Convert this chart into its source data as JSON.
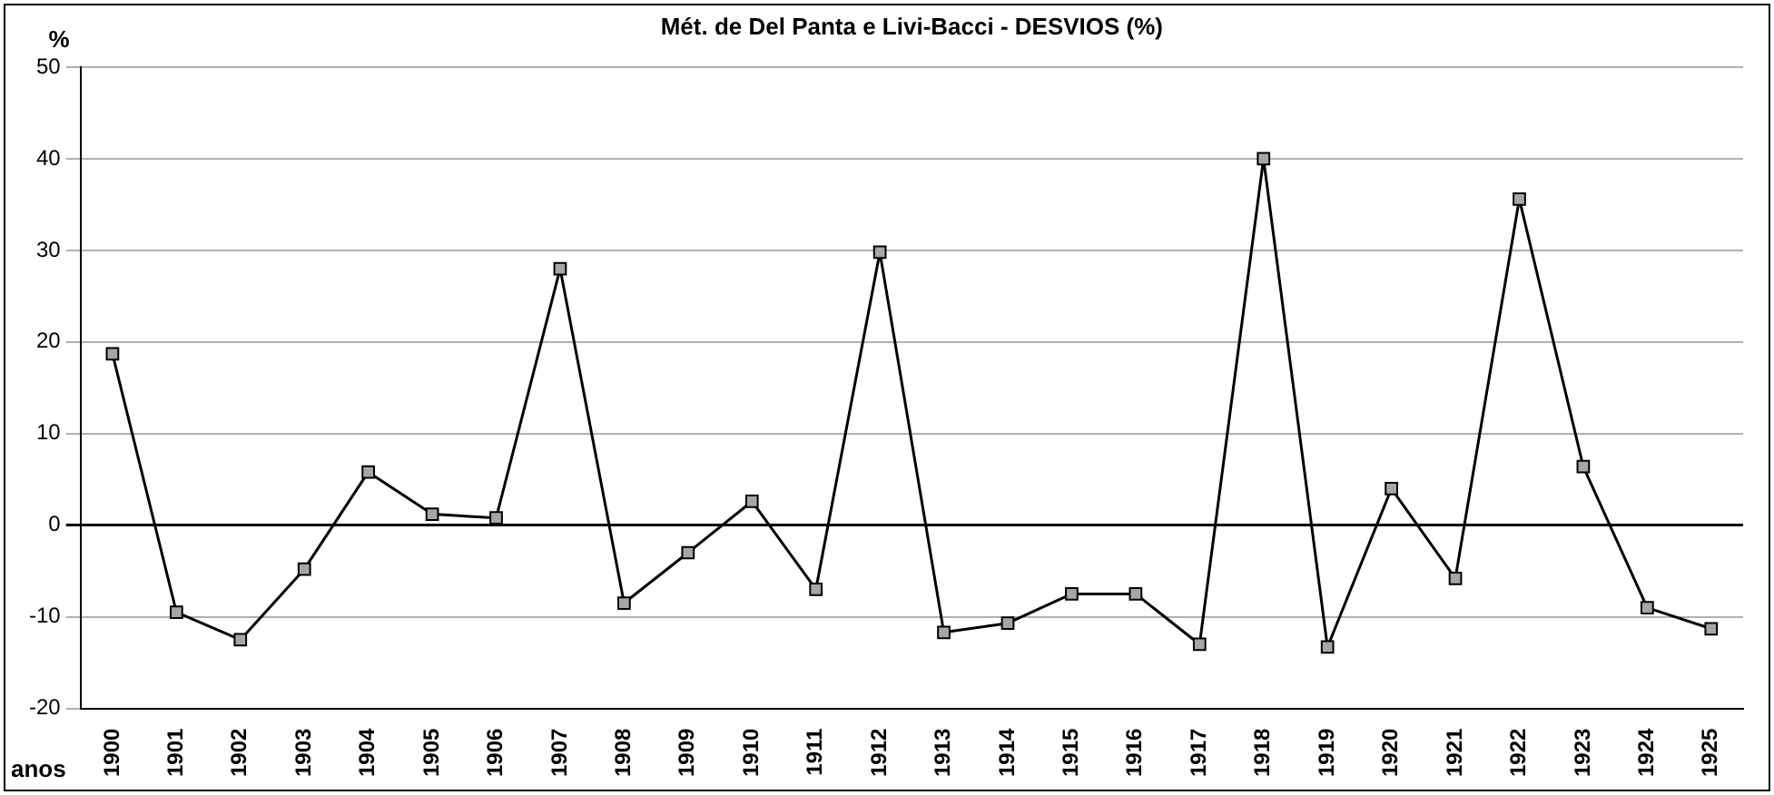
{
  "chart_data": {
    "type": "line",
    "title": "Mét. de Del Panta e Livi-Bacci - DESVIOS (%)",
    "ylabel": "%",
    "xlabel": "anos",
    "categories": [
      "1900",
      "1901",
      "1902",
      "1903",
      "1904",
      "1905",
      "1906",
      "1907",
      "1908",
      "1909",
      "1910",
      "1911",
      "1912",
      "1913",
      "1914",
      "1915",
      "1916",
      "1917",
      "1918",
      "1919",
      "1920",
      "1921",
      "1922",
      "1923",
      "1924",
      "1925"
    ],
    "series": [
      {
        "color": "#000000",
        "values": [
          18.7,
          -9.5,
          -12.5,
          -4.8,
          5.8,
          1.2,
          0.8,
          28,
          -8.5,
          -3,
          2.6,
          -7,
          29.8,
          -11.7,
          -10.7,
          -7.5,
          -7.5,
          -13,
          40,
          -13.3,
          4,
          -5.8,
          35.6,
          6.4,
          -9,
          -11.3
        ]
      }
    ],
    "ylim": [
      -20,
      50
    ],
    "yticks": [
      -20,
      -10,
      0,
      10,
      20,
      30,
      40,
      50
    ],
    "grid": "y",
    "legend": false,
    "marker": "square",
    "line_style": "solid"
  }
}
